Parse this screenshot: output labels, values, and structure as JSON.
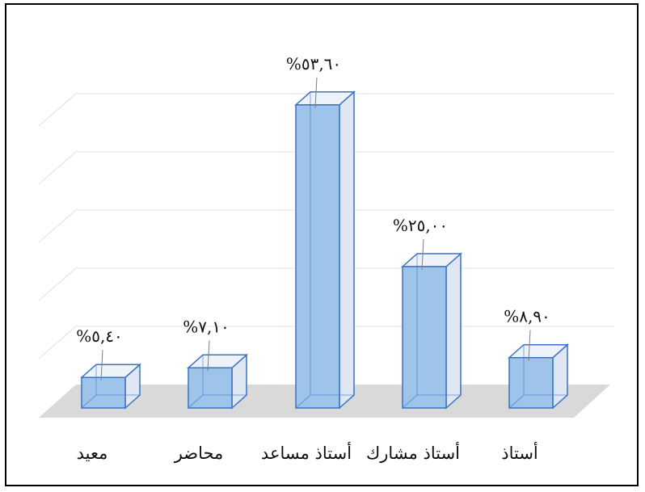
{
  "chart_data": {
    "type": "bar",
    "style": "3d-column",
    "categories": [
      "معيد",
      "محاضر",
      "أستاذ مساعد",
      "أستاذ مشارك",
      "أستاذ"
    ],
    "values": [
      5.4,
      7.1,
      53.6,
      25.0,
      8.9
    ],
    "data_labels": [
      "%٥,٤٠",
      "%٧,١٠",
      "%٥٣,٦٠",
      "%٢٥,٠٠",
      "%٨,٩٠"
    ],
    "ylim": [
      0,
      60
    ],
    "grid": true,
    "legend": "none",
    "colors": {
      "bar_front": "#9ec4ea",
      "bar_edge": "#3b73c4",
      "bar_side": "#dfe7f2",
      "bar_top": "#eef3fa",
      "floor": "#d9d9d9",
      "gridline": "#e0e0e0"
    }
  }
}
